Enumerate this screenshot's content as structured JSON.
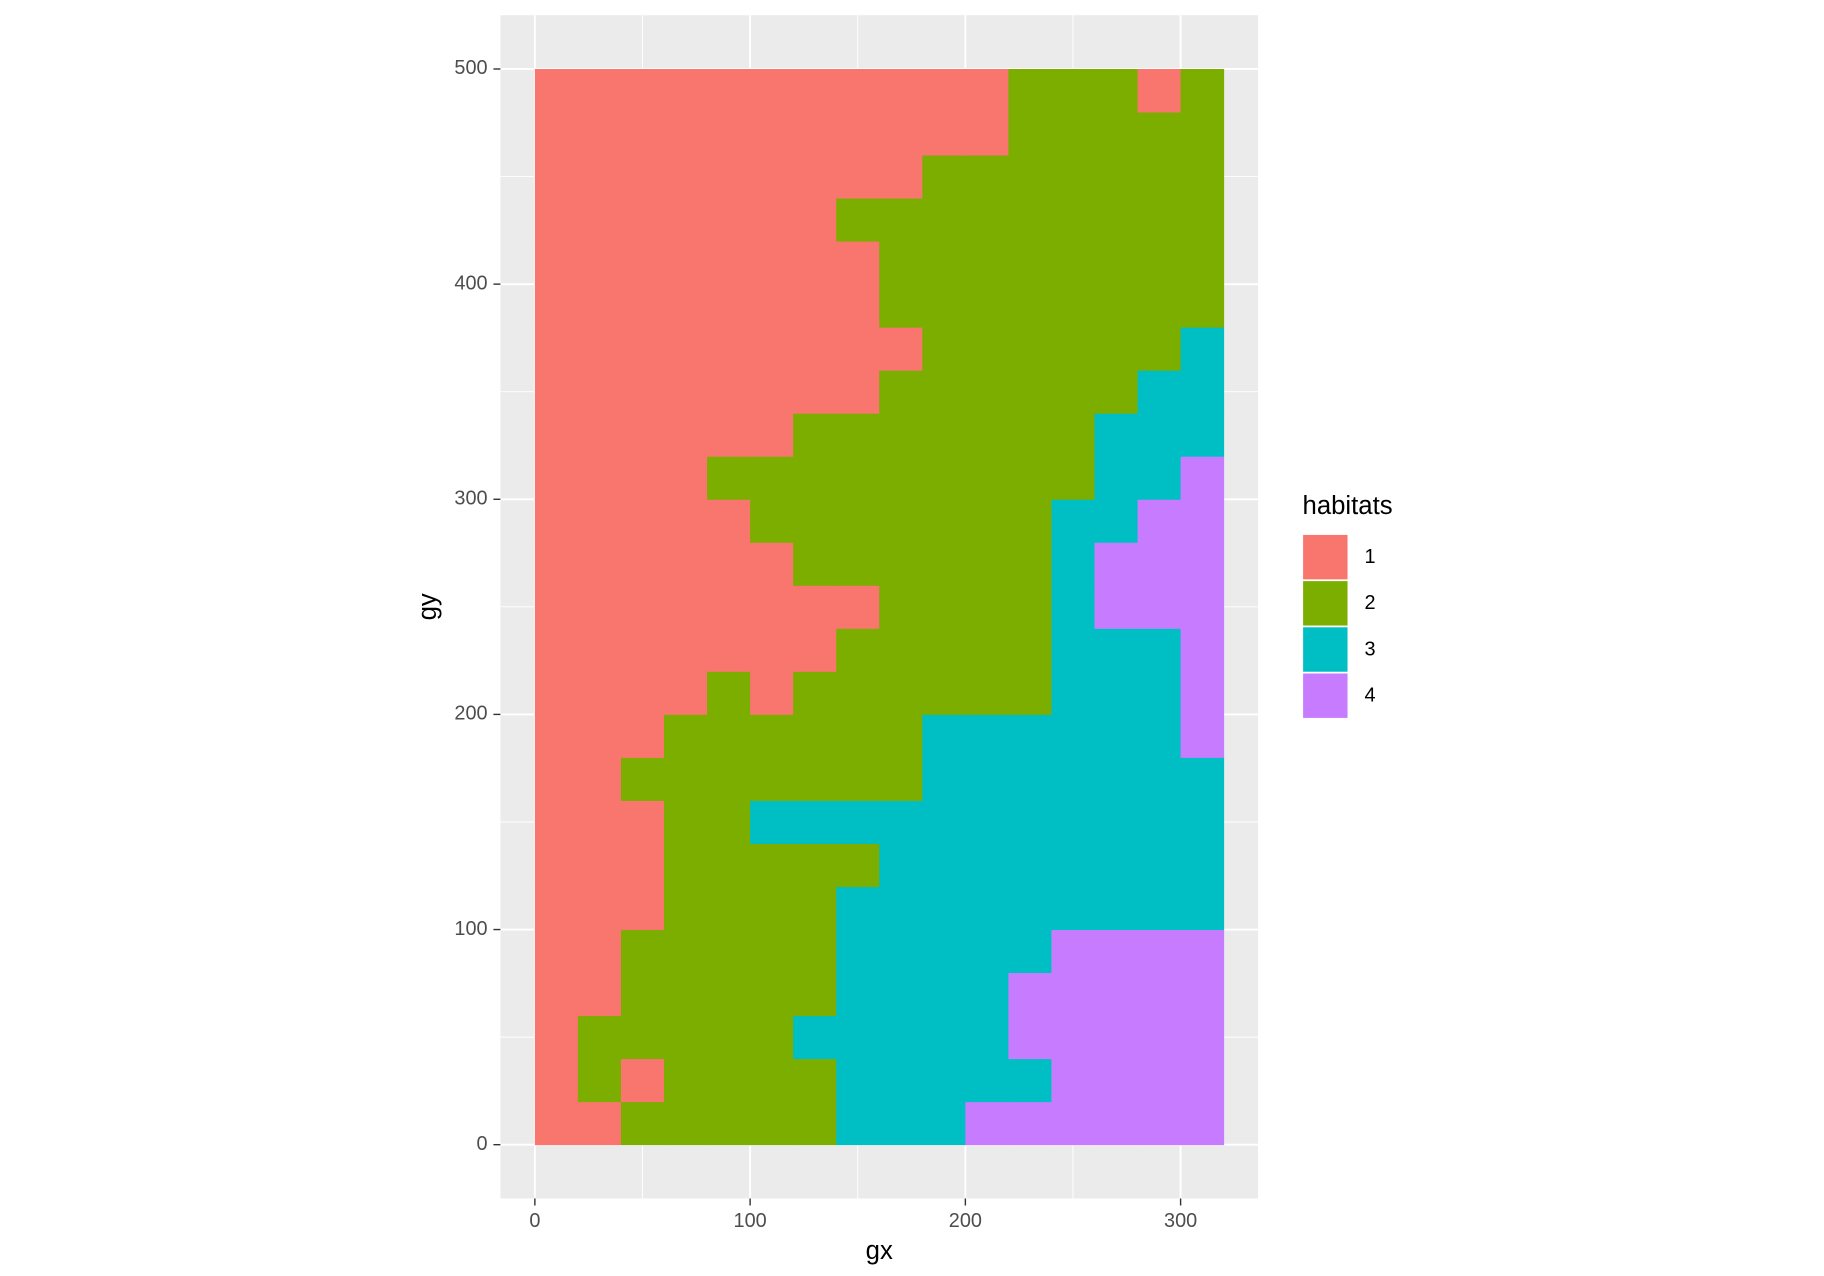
{
  "chart_data": {
    "type": "raster",
    "x_label": "gx",
    "y_label": "gy",
    "x": [
      10,
      30,
      50,
      70,
      90,
      110,
      130,
      150,
      170,
      190,
      210,
      230,
      250,
      270,
      290,
      310
    ],
    "y": [
      10,
      30,
      50,
      70,
      90,
      110,
      130,
      150,
      170,
      190,
      210,
      230,
      250,
      270,
      290,
      310,
      330,
      350,
      370,
      390,
      410,
      430,
      450,
      470,
      490
    ],
    "values": [
      [
        1,
        1,
        2,
        2,
        2,
        2,
        2,
        3,
        3,
        3,
        4,
        4,
        4,
        4,
        4,
        4
      ],
      [
        1,
        2,
        1,
        2,
        2,
        2,
        2,
        3,
        3,
        3,
        3,
        3,
        4,
        4,
        4,
        4
      ],
      [
        1,
        2,
        2,
        2,
        2,
        2,
        3,
        3,
        3,
        3,
        3,
        4,
        4,
        4,
        4,
        4
      ],
      [
        1,
        1,
        2,
        2,
        2,
        2,
        2,
        3,
        3,
        3,
        3,
        4,
        4,
        4,
        4,
        4
      ],
      [
        1,
        1,
        2,
        2,
        2,
        2,
        2,
        3,
        3,
        3,
        3,
        3,
        4,
        4,
        4,
        4
      ],
      [
        1,
        1,
        1,
        2,
        2,
        2,
        2,
        3,
        3,
        3,
        3,
        3,
        3,
        3,
        3,
        3
      ],
      [
        1,
        1,
        1,
        2,
        2,
        2,
        2,
        2,
        3,
        3,
        3,
        3,
        3,
        3,
        3,
        3
      ],
      [
        1,
        1,
        1,
        2,
        2,
        3,
        3,
        3,
        3,
        3,
        3,
        3,
        3,
        3,
        3,
        3
      ],
      [
        1,
        1,
        2,
        2,
        2,
        2,
        2,
        2,
        2,
        3,
        3,
        3,
        3,
        3,
        3,
        3
      ],
      [
        1,
        1,
        1,
        2,
        2,
        2,
        2,
        2,
        2,
        3,
        3,
        3,
        3,
        3,
        3,
        4
      ],
      [
        1,
        1,
        1,
        1,
        2,
        1,
        2,
        2,
        2,
        2,
        2,
        2,
        3,
        3,
        3,
        4
      ],
      [
        1,
        1,
        1,
        1,
        1,
        1,
        1,
        2,
        2,
        2,
        2,
        2,
        3,
        3,
        3,
        4
      ],
      [
        1,
        1,
        1,
        1,
        1,
        1,
        1,
        1,
        2,
        2,
        2,
        2,
        3,
        4,
        4,
        4
      ],
      [
        1,
        1,
        1,
        1,
        1,
        1,
        2,
        2,
        2,
        2,
        2,
        2,
        3,
        4,
        4,
        4
      ],
      [
        1,
        1,
        1,
        1,
        1,
        2,
        2,
        2,
        2,
        2,
        2,
        2,
        3,
        3,
        4,
        4
      ],
      [
        1,
        1,
        1,
        1,
        2,
        2,
        2,
        2,
        2,
        2,
        2,
        2,
        2,
        3,
        3,
        4
      ],
      [
        1,
        1,
        1,
        1,
        1,
        1,
        2,
        2,
        2,
        2,
        2,
        2,
        2,
        3,
        3,
        3
      ],
      [
        1,
        1,
        1,
        1,
        1,
        1,
        1,
        1,
        2,
        2,
        2,
        2,
        2,
        2,
        3,
        3
      ],
      [
        1,
        1,
        1,
        1,
        1,
        1,
        1,
        1,
        1,
        2,
        2,
        2,
        2,
        2,
        2,
        3
      ],
      [
        1,
        1,
        1,
        1,
        1,
        1,
        1,
        1,
        2,
        2,
        2,
        2,
        2,
        2,
        2,
        2
      ],
      [
        1,
        1,
        1,
        1,
        1,
        1,
        1,
        1,
        2,
        2,
        2,
        2,
        2,
        2,
        2,
        2
      ],
      [
        1,
        1,
        1,
        1,
        1,
        1,
        1,
        2,
        2,
        2,
        2,
        2,
        2,
        2,
        2,
        2
      ],
      [
        1,
        1,
        1,
        1,
        1,
        1,
        1,
        1,
        1,
        2,
        2,
        2,
        2,
        2,
        2,
        2
      ],
      [
        1,
        1,
        1,
        1,
        1,
        1,
        1,
        1,
        1,
        1,
        1,
        2,
        2,
        2,
        2,
        2
      ],
      [
        1,
        1,
        1,
        1,
        1,
        1,
        1,
        1,
        1,
        1,
        1,
        2,
        2,
        2,
        1,
        2
      ]
    ],
    "xlim": [
      -16,
      336
    ],
    "ylim": [
      -25,
      525
    ],
    "xticks": [
      0,
      100,
      200,
      300
    ],
    "yticks": [
      0,
      100,
      200,
      300,
      400,
      500
    ],
    "grid": true,
    "legend": {
      "title": "habitats",
      "levels": [
        1,
        2,
        3,
        4
      ],
      "colors": [
        "#F8766D",
        "#7CAE00",
        "#00BFC4",
        "#C77CFF"
      ],
      "position": "right"
    }
  }
}
